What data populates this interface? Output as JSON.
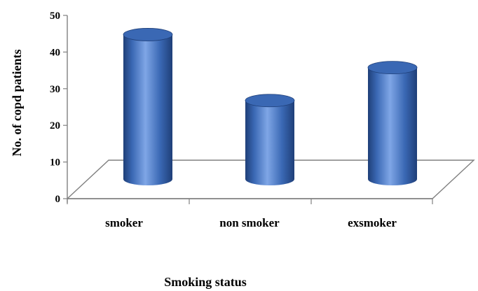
{
  "chart_data": {
    "type": "bar",
    "style": "3d-cylinder",
    "categories": [
      "smoker",
      "non smoker",
      "exsmoker"
    ],
    "values": [
      44,
      26,
      35
    ],
    "xlabel": "Smoking status",
    "ylabel": "No. of copd patients",
    "ylim": [
      0,
      50
    ],
    "yticks": [
      "0",
      "10",
      "20",
      "30",
      "40",
      "50"
    ],
    "grid": false,
    "legend": "none",
    "colors": {
      "bar": "#3a68b4",
      "bar_dark": "#1f3f78",
      "bar_light": "#7fa6e6",
      "floor": "#808080"
    }
  }
}
